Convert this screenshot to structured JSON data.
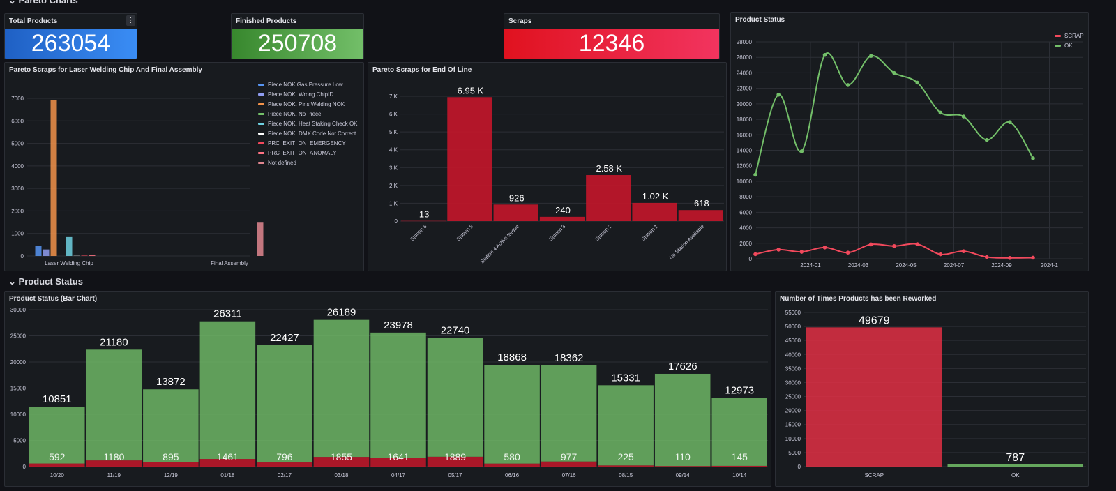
{
  "section_pareto": {
    "label": "Pareto Charts"
  },
  "section_status": {
    "label": "Product Status"
  },
  "stats": {
    "total": {
      "title": "Total Products",
      "value": "263054"
    },
    "finished": {
      "title": "Finished Products",
      "value": "250708"
    },
    "scraps": {
      "title": "Scraps",
      "value": "12346"
    }
  },
  "colors": {
    "ok_green": "#73bf69",
    "scrap_red": "#c4162a",
    "blue": "#1f60c4",
    "finished_green": "#56a64b"
  },
  "panels": {
    "pareto_laser": {
      "title": "Pareto Scraps for Laser Welding Chip And Final Assembly"
    },
    "pareto_eol": {
      "title": "Pareto Scraps for End Of Line"
    },
    "status_line": {
      "title": "Product Status"
    },
    "status_bar": {
      "title": "Product Status (Bar Chart)"
    },
    "rework": {
      "title": "Number of Times Products has been Reworked"
    }
  },
  "chart_data": [
    {
      "id": "laser",
      "type": "bar",
      "categories": [
        "Laser Welding Chip",
        "Final Assembly"
      ],
      "ylim": [
        0,
        7000
      ],
      "yticks": [
        0,
        1000,
        2000,
        3000,
        4000,
        5000,
        6000,
        7000
      ],
      "legend_position": "right",
      "series": [
        {
          "name": "Piece NOK.Gas Pressure Low",
          "color": "#5794f2",
          "values": [
            440,
            0
          ]
        },
        {
          "name": "Piece NOK. Wrong ChipID",
          "color": "#8f9cf0",
          "values": [
            290,
            0
          ]
        },
        {
          "name": "Piece NOK. Pins Welding NOK",
          "color": "#f2924a",
          "values": [
            6920,
            0
          ]
        },
        {
          "name": "Piece NOK. No Piece",
          "color": "#73bf69",
          "values": [
            0,
            0
          ]
        },
        {
          "name": "Piece NOK. Heat Staking Check OK",
          "color": "#6ed0e0",
          "values": [
            840,
            0
          ]
        },
        {
          "name": "Piece NOK. DMX Code Not Correct",
          "color": "#ffffff",
          "values": [
            10,
            0
          ]
        },
        {
          "name": "PRC_EXIT_ON_EMERGENCY",
          "color": "#f2495c",
          "values": [
            20,
            0
          ]
        },
        {
          "name": "PRC_EXIT_ON_ANOMALY",
          "color": "#ff7383",
          "values": [
            40,
            0
          ]
        },
        {
          "name": "Not defined",
          "color": "#e0868f",
          "values": [
            0,
            1480
          ]
        }
      ]
    },
    {
      "id": "eol",
      "type": "bar",
      "categories": [
        "Station 6",
        "Station 5",
        "Station 4 Active torque",
        "Station 3",
        "Station 2",
        "Station 1",
        "No Station Available"
      ],
      "values": [
        13,
        6950,
        926,
        240,
        2580,
        1020,
        618
      ],
      "value_labels": [
        "13",
        "6.95 K",
        "926",
        "240",
        "2.58 K",
        "1.02 K",
        "618"
      ],
      "ylim": [
        0,
        7000
      ],
      "yticks": [
        "0",
        "1 K",
        "2 K",
        "3 K",
        "4 K",
        "5 K",
        "6 K",
        "7 K"
      ],
      "color": "#c4162a"
    },
    {
      "id": "statusline",
      "type": "line",
      "x_ticks": [
        "2024-01",
        "2024-03",
        "2024-05",
        "2024-07",
        "2024-09",
        "2024-1"
      ],
      "ylim": [
        0,
        28000
      ],
      "yticks": [
        0,
        2000,
        4000,
        6000,
        8000,
        10000,
        12000,
        14000,
        16000,
        18000,
        20000,
        22000,
        24000,
        26000,
        28000
      ],
      "legend_position": "top-right",
      "series": [
        {
          "name": "SCRAP",
          "color": "#f2495c",
          "values": [
            592,
            1180,
            895,
            1461,
            796,
            1855,
            1641,
            1889,
            580,
            977,
            225,
            110,
            145
          ]
        },
        {
          "name": "OK",
          "color": "#73bf69",
          "values": [
            10851,
            21180,
            13872,
            26311,
            22427,
            26189,
            23978,
            22740,
            18868,
            18362,
            15331,
            17626,
            12973
          ]
        }
      ]
    },
    {
      "id": "statusbar",
      "type": "bar",
      "categories": [
        "10/20",
        "11/19",
        "12/19",
        "01/18",
        "02/17",
        "03/18",
        "04/17",
        "05/17",
        "06/16",
        "07/16",
        "08/15",
        "09/14",
        "10/14"
      ],
      "ylim": [
        0,
        30000
      ],
      "yticks": [
        0,
        5000,
        10000,
        15000,
        20000,
        25000,
        30000
      ],
      "series": [
        {
          "name": "OK",
          "color": "#73bf69",
          "values": [
            10851,
            21180,
            13872,
            26311,
            22427,
            26189,
            23978,
            22740,
            18868,
            18362,
            15331,
            17626,
            12973
          ]
        },
        {
          "name": "SCRAP",
          "color": "#c4162a",
          "values": [
            592,
            1180,
            895,
            1461,
            796,
            1855,
            1641,
            1889,
            580,
            977,
            225,
            110,
            145
          ]
        }
      ]
    },
    {
      "id": "rework",
      "type": "bar",
      "categories": [
        "SCRAP",
        "OK"
      ],
      "values": [
        49679,
        787
      ],
      "colors": [
        "#e02f44",
        "#73bf69"
      ],
      "ylim": [
        0,
        55000
      ],
      "yticks": [
        0,
        5000,
        10000,
        15000,
        20000,
        25000,
        30000,
        35000,
        40000,
        45000,
        50000,
        55000
      ]
    }
  ]
}
